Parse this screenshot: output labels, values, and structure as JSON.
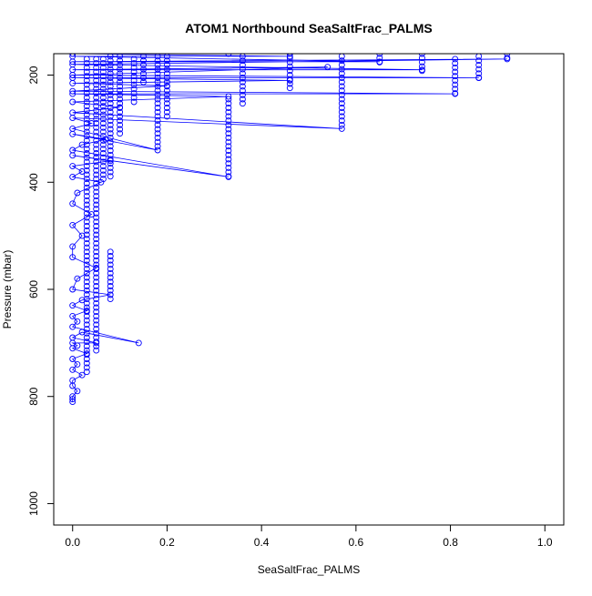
{
  "chart_data": {
    "type": "scatter",
    "title": "ATOM1 Northbound SeaSaltFrac_PALMS",
    "xlabel": "SeaSaltFrac_PALMS",
    "ylabel": "Pressure (mbar)",
    "xlim": [
      -0.04,
      1.04
    ],
    "ylim": [
      1040,
      160
    ],
    "y_reversed": true,
    "x_ticks": [
      0.0,
      0.2,
      0.4,
      0.6,
      0.8,
      1.0
    ],
    "x_tick_labels": [
      "0.0",
      "0.2",
      "0.4",
      "0.6",
      "0.8",
      "1.0"
    ],
    "y_ticks": [
      200,
      400,
      600,
      800,
      1000
    ],
    "y_tick_labels": [
      "200",
      "400",
      "600",
      "800",
      "1000"
    ],
    "grid": false,
    "legend": "none",
    "series": [
      {
        "color": "#0000ff",
        "marker": "open-circle",
        "connected": true,
        "x": [
          0.0,
          0.0,
          0.0,
          0.01,
          0.0,
          0.0,
          0.02,
          0.0,
          0.01,
          0.0,
          0.03,
          0.0,
          0.01,
          0.0,
          0.05,
          0.0,
          0.02,
          0.14,
          0.0,
          0.01,
          0.0,
          0.03,
          0.0,
          0.02,
          0.08,
          0.0,
          0.01,
          0.05,
          0.0,
          0.0,
          0.02,
          0.0,
          0.04,
          0.0,
          0.01,
          0.06,
          0.0,
          0.02,
          0.0,
          0.08,
          0.0,
          0.33,
          0.0,
          0.02,
          0.07,
          0.0,
          0.18,
          0.0,
          0.04,
          0.0,
          0.57,
          0.0,
          0.1,
          0.0,
          0.33,
          0.0,
          0.81,
          0.0,
          0.2,
          0.0,
          0.46,
          0.0,
          0.86,
          0.0,
          0.54,
          0.0,
          0.74,
          0.0,
          0.92,
          0.0,
          0.65,
          0.0,
          0.46,
          0.0,
          0.33
        ],
        "y": [
          810,
          805,
          800,
          790,
          780,
          770,
          760,
          750,
          740,
          730,
          720,
          710,
          705,
          700,
          700,
          690,
          680,
          700,
          670,
          660,
          650,
          640,
          630,
          620,
          610,
          600,
          580,
          560,
          540,
          520,
          500,
          480,
          460,
          440,
          420,
          400,
          390,
          380,
          370,
          360,
          350,
          390,
          340,
          330,
          320,
          310,
          340,
          300,
          290,
          280,
          300,
          270,
          260,
          250,
          240,
          235,
          235,
          230,
          220,
          215,
          210,
          205,
          205,
          200,
          185,
          190,
          190,
          180,
          170,
          175,
          175,
          165,
          165,
          160,
          160
        ]
      }
    ],
    "vertical_stacks": [
      {
        "x": 0.03,
        "y_top": 170,
        "y_bottom": 760,
        "step": 8
      },
      {
        "x": 0.05,
        "y_top": 170,
        "y_bottom": 720,
        "step": 8
      },
      {
        "x": 0.065,
        "y_top": 170,
        "y_bottom": 400,
        "step": 8
      },
      {
        "x": 0.08,
        "y_top": 530,
        "y_bottom": 625,
        "step": 8
      },
      {
        "x": 0.08,
        "y_top": 165,
        "y_bottom": 395,
        "step": 8
      },
      {
        "x": 0.1,
        "y_top": 165,
        "y_bottom": 310,
        "step": 8
      },
      {
        "x": 0.13,
        "y_top": 170,
        "y_bottom": 250,
        "step": 8
      },
      {
        "x": 0.15,
        "y_top": 165,
        "y_bottom": 215,
        "step": 8
      },
      {
        "x": 0.18,
        "y_top": 165,
        "y_bottom": 340,
        "step": 8
      },
      {
        "x": 0.2,
        "y_top": 165,
        "y_bottom": 280,
        "step": 8
      },
      {
        "x": 0.33,
        "y_top": 245,
        "y_bottom": 390,
        "step": 8
      },
      {
        "x": 0.36,
        "y_top": 165,
        "y_bottom": 255,
        "step": 8
      },
      {
        "x": 0.46,
        "y_top": 160,
        "y_bottom": 230,
        "step": 8
      },
      {
        "x": 0.57,
        "y_top": 165,
        "y_bottom": 300,
        "step": 8
      },
      {
        "x": 0.65,
        "y_top": 160,
        "y_bottom": 180,
        "step": 8
      },
      {
        "x": 0.74,
        "y_top": 160,
        "y_bottom": 195,
        "step": 8
      },
      {
        "x": 0.81,
        "y_top": 170,
        "y_bottom": 235,
        "step": 8
      },
      {
        "x": 0.86,
        "y_top": 165,
        "y_bottom": 210,
        "step": 8
      },
      {
        "x": 0.92,
        "y_top": 160,
        "y_bottom": 170,
        "step": 8
      }
    ]
  }
}
